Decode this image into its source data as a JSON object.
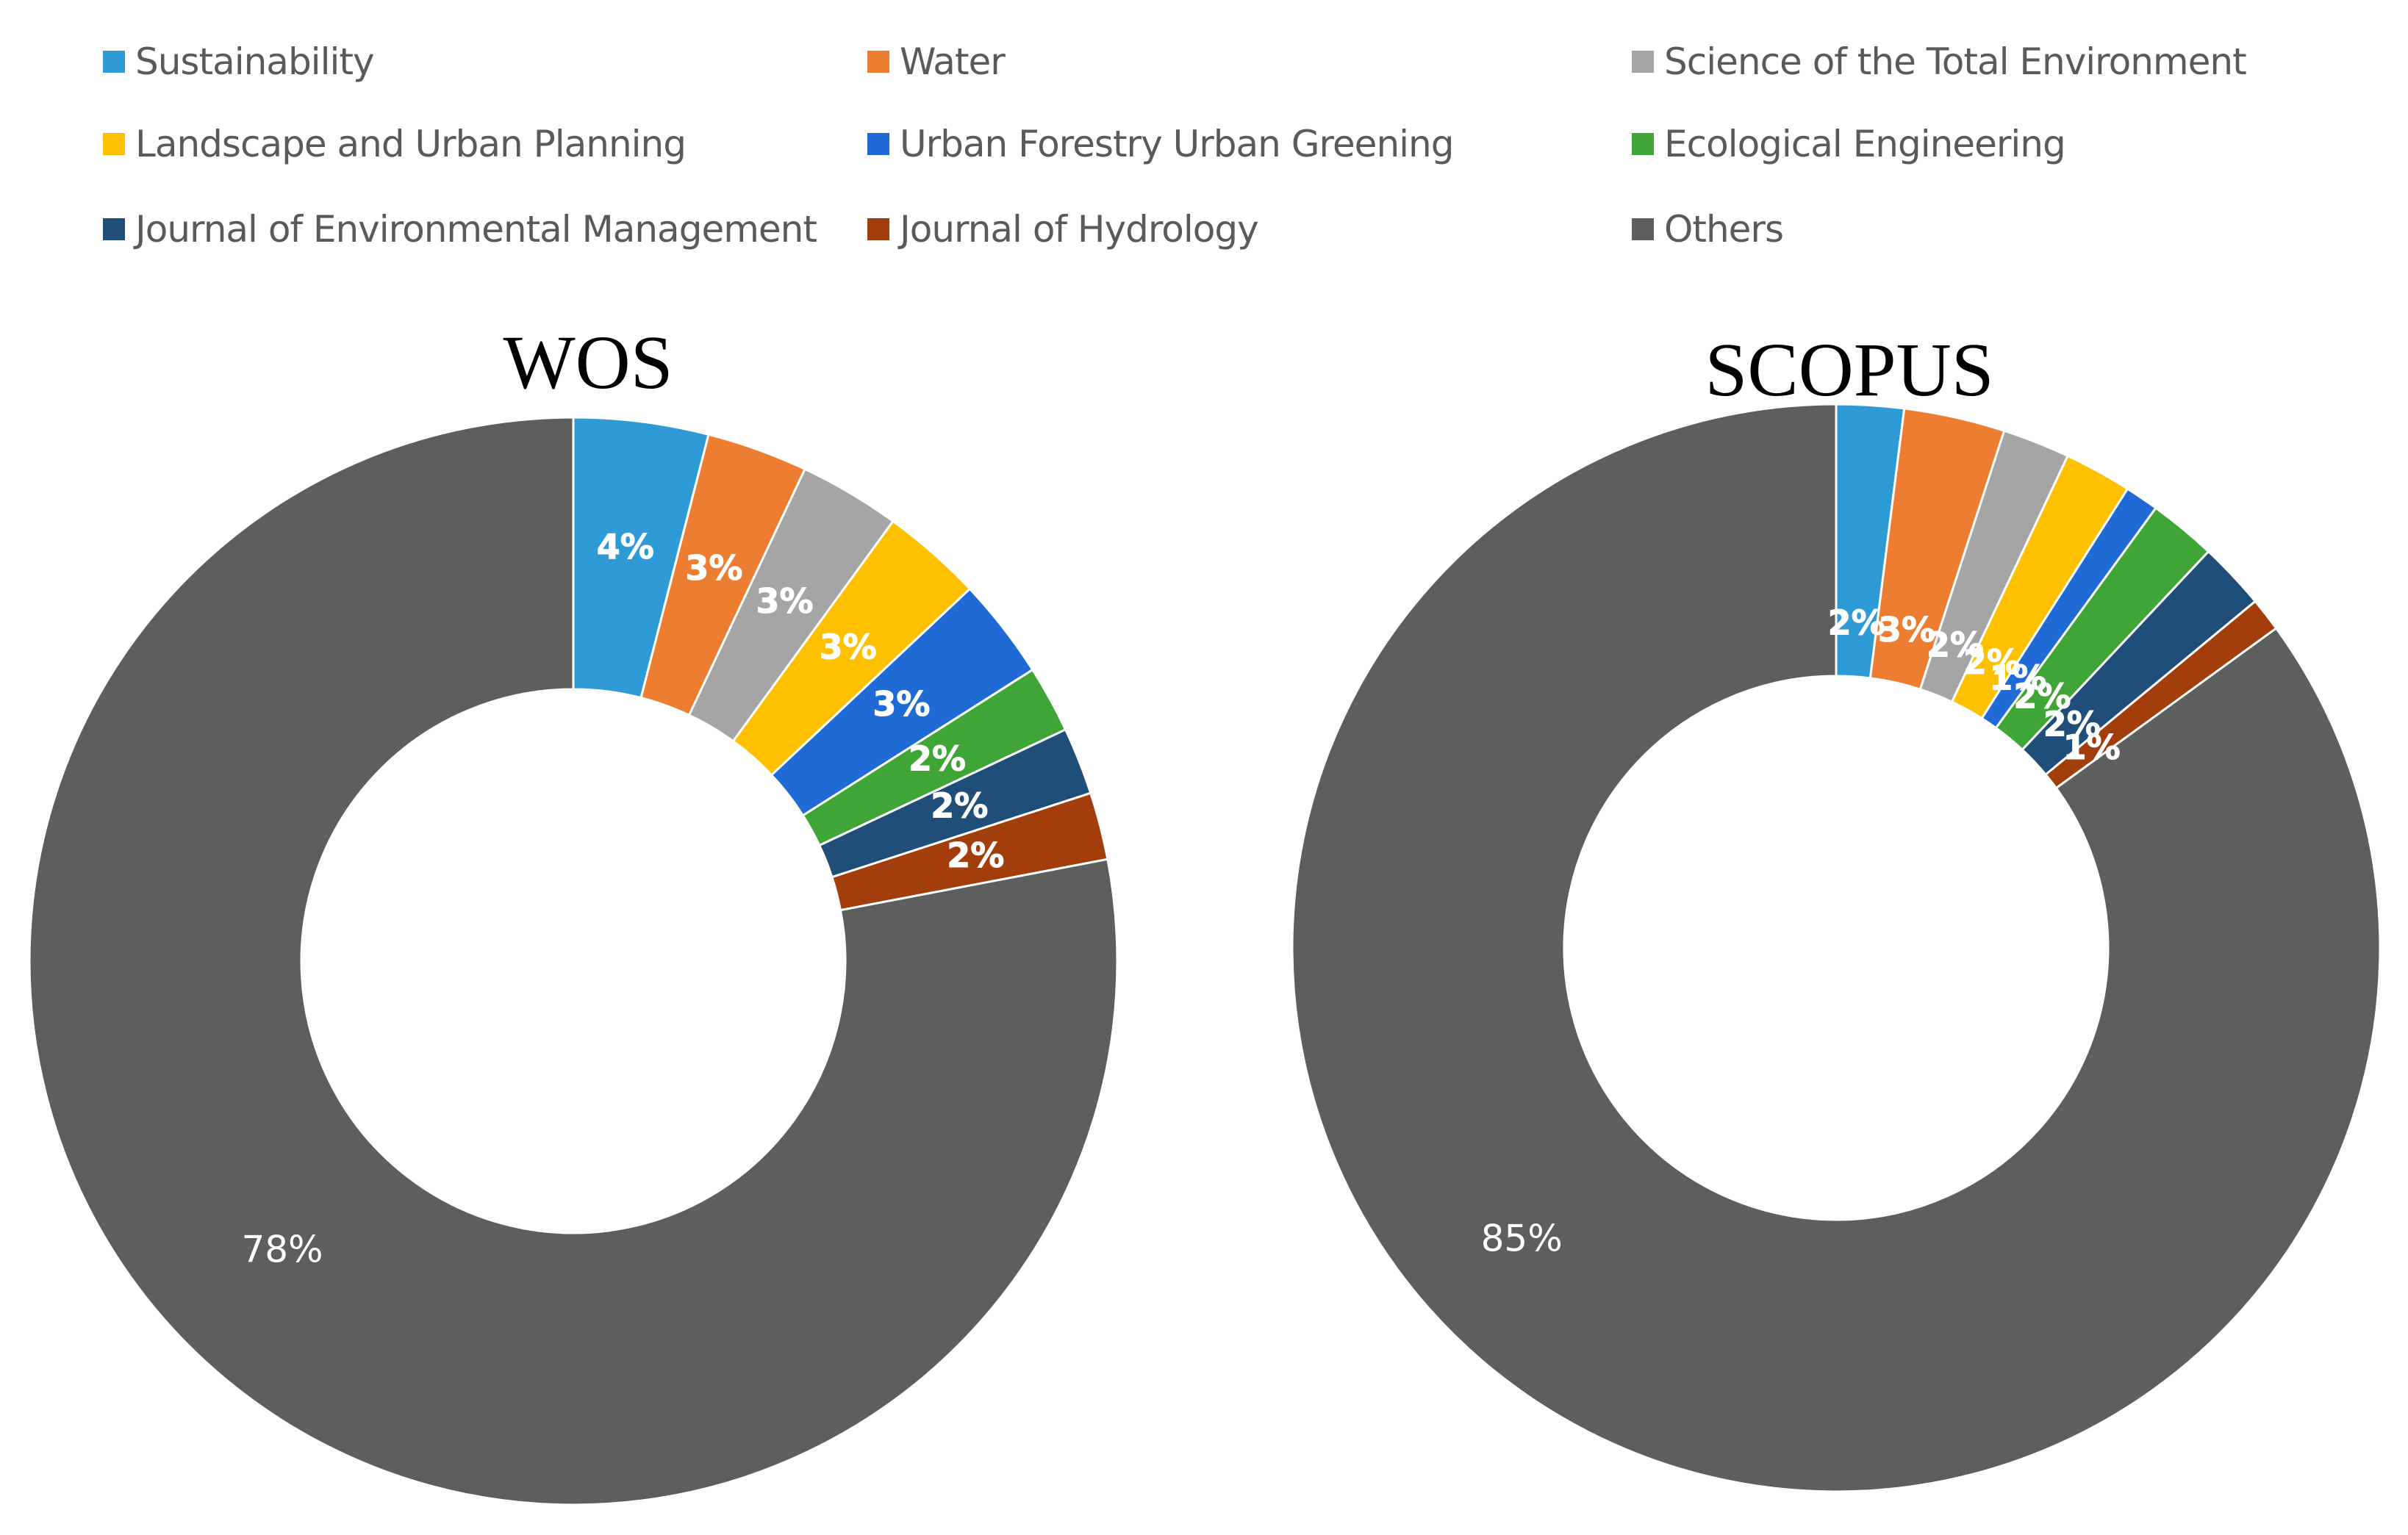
{
  "chart_data": [
    {
      "type": "pie",
      "variant": "doughnut",
      "title": "WOS",
      "categories": [
        "Sustainability",
        "Water",
        "Science of the Total Environment",
        "Landscape and Urban Planning",
        "Urban Forestry Urban Greening",
        "Ecological Engineering",
        "Journal of Environmental Management",
        "Journal of Hydrology",
        "Others"
      ],
      "values": [
        4,
        3,
        3,
        3,
        3,
        2,
        2,
        2,
        78
      ],
      "labels": [
        "4%",
        "3%",
        "3%",
        "3%",
        "3%",
        "2%",
        "2%",
        "2%",
        "78%"
      ]
    },
    {
      "type": "pie",
      "variant": "doughnut",
      "title": "SCOPUS",
      "categories": [
        "Sustainability",
        "Water",
        "Science of the Total Environment",
        "Landscape and Urban Planning",
        "Urban Forestry Urban Greening",
        "Ecological Engineering",
        "Journal of Environmental Management",
        "Journal of Hydrology",
        "Others"
      ],
      "values": [
        2,
        3,
        2,
        2,
        1,
        2,
        2,
        1,
        85
      ],
      "labels": [
        "2%",
        "3%",
        "2%",
        "2%",
        "1%",
        "2%",
        "2%",
        "1%",
        "85%"
      ]
    }
  ],
  "legend": {
    "placement": "top",
    "items": [
      {
        "label": "Sustainability",
        "color": "#2e9bd6"
      },
      {
        "label": "Water",
        "color": "#ed7d31"
      },
      {
        "label": "Science of the Total Environment",
        "color": "#a5a5a5"
      },
      {
        "label": "Landscape and Urban Planning",
        "color": "#ffc000"
      },
      {
        "label": "Urban Forestry Urban Greening",
        "color": "#1f6ad4"
      },
      {
        "label": "Ecological Engineering",
        "color": "#3fa536"
      },
      {
        "label": "Journal of Environmental Management",
        "color": "#1f4e79"
      },
      {
        "label": "Journal of Hydrology",
        "color": "#a23d0c"
      },
      {
        "label": "Others",
        "color": "#5e5e5e"
      }
    ]
  }
}
